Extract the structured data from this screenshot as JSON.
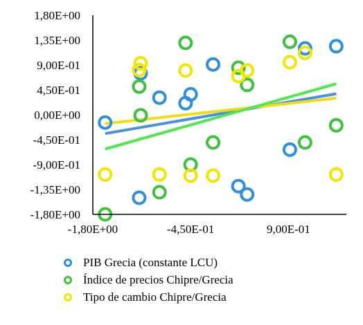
{
  "chart_data": {
    "type": "scatter",
    "title": "",
    "xlabel": "",
    "ylabel": "",
    "xlim": [
      -1.8,
      1.7
    ],
    "ylim": [
      -1.8,
      1.8
    ],
    "x_ticks": [
      "-1,80E+00",
      "-4,50E-01",
      "9,00E-01"
    ],
    "x_tick_values": [
      -1.8,
      -0.45,
      0.9
    ],
    "y_ticks": [
      "1,80E+00",
      "1,35E+00",
      "9,00E-01",
      "4,50E-01",
      "0,00E+00",
      "-4,50E-01",
      "-9,00E-01",
      "-1,35E+00",
      "-1,80E+00"
    ],
    "y_tick_values": [
      1.8,
      1.35,
      0.9,
      0.45,
      0.0,
      -0.45,
      -0.9,
      -1.35,
      -1.8
    ],
    "grid": false,
    "legend_position": "bottom",
    "series": [
      {
        "name": "PIB Grecia (constante LCU)",
        "color": "#2e8fe0",
        "trend_color": "#4a90e2",
        "points": [
          {
            "x": -1.63,
            "y": -0.14
          },
          {
            "x": -1.14,
            "y": 0.75
          },
          {
            "x": -1.16,
            "y": -1.5
          },
          {
            "x": -0.88,
            "y": 0.31
          },
          {
            "x": -0.52,
            "y": 0.21
          },
          {
            "x": -0.45,
            "y": 0.37
          },
          {
            "x": -0.14,
            "y": 0.91
          },
          {
            "x": 0.21,
            "y": -1.29
          },
          {
            "x": 0.33,
            "y": -1.44
          },
          {
            "x": 0.92,
            "y": -0.63
          },
          {
            "x": 1.13,
            "y": 1.2
          },
          {
            "x": 1.56,
            "y": 1.24
          }
        ],
        "trend": [
          {
            "x": -1.63,
            "y": -0.34
          },
          {
            "x": 1.56,
            "y": 0.38
          }
        ]
      },
      {
        "name": "Índice de precios Chipre/Grecia",
        "color": "#3cc23c",
        "trend_color": "#4ee84e",
        "points": [
          {
            "x": -1.63,
            "y": -1.8
          },
          {
            "x": -1.16,
            "y": 0.51
          },
          {
            "x": -1.14,
            "y": -0.01
          },
          {
            "x": -0.88,
            "y": -1.4
          },
          {
            "x": -0.52,
            "y": 1.3
          },
          {
            "x": -0.45,
            "y": -0.9
          },
          {
            "x": -0.14,
            "y": -0.5
          },
          {
            "x": 0.21,
            "y": 0.85
          },
          {
            "x": 0.33,
            "y": 0.54
          },
          {
            "x": 0.92,
            "y": 1.32
          },
          {
            "x": 1.13,
            "y": -0.5
          },
          {
            "x": 1.56,
            "y": -0.19
          }
        ],
        "trend": [
          {
            "x": -1.63,
            "y": -0.62
          },
          {
            "x": 1.56,
            "y": 0.56
          }
        ]
      },
      {
        "name": "Tipo de cambio Chipre/Grecia",
        "color": "#f2e600",
        "trend_color": "#f0dc14",
        "points": [
          {
            "x": -1.63,
            "y": -1.08
          },
          {
            "x": -1.14,
            "y": 0.93
          },
          {
            "x": -1.16,
            "y": 0.81
          },
          {
            "x": -0.88,
            "y": -1.08
          },
          {
            "x": -0.52,
            "y": 0.8
          },
          {
            "x": -0.45,
            "y": -1.1
          },
          {
            "x": -0.14,
            "y": -1.1
          },
          {
            "x": 0.21,
            "y": 0.7
          },
          {
            "x": 0.33,
            "y": 0.8
          },
          {
            "x": 0.92,
            "y": 0.95
          },
          {
            "x": 1.13,
            "y": 1.12
          },
          {
            "x": 1.56,
            "y": -1.08
          }
        ],
        "trend": [
          {
            "x": -1.63,
            "y": -0.16
          },
          {
            "x": 1.56,
            "y": 0.3
          }
        ]
      }
    ]
  }
}
